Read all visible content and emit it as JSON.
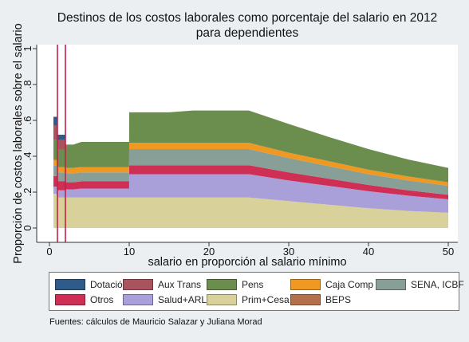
{
  "chart_data": {
    "type": "area",
    "title": "Destinos de los costos laborales como porcentaje del salario en 2012 para dependientes",
    "xlabel": "salario en proporción al salario mínimo",
    "ylabel": "Proporción de costos laborales sobre el salario",
    "xlim": [
      0,
      50
    ],
    "ylim": [
      0,
      1
    ],
    "x_ticks": [
      "0",
      "10",
      "20",
      "30",
      "40",
      "50"
    ],
    "y_ticks": [
      "0",
      ".2",
      ".4",
      ".6",
      ".8",
      "1"
    ],
    "reference_lines_x": [
      1,
      2
    ],
    "grid": false,
    "stacked": true,
    "x": [
      0.5,
      1,
      1.01,
      2,
      2.01,
      3,
      4,
      5,
      6,
      7,
      8,
      9,
      9.99,
      10,
      12,
      15,
      18,
      20,
      22,
      25,
      30,
      35,
      40,
      45,
      50
    ],
    "series": [
      {
        "name": "Prim+Cesa",
        "color": "#d8d19a",
        "values": [
          0.19,
          0.19,
          0.17,
          0.17,
          0.17,
          0.17,
          0.17,
          0.17,
          0.17,
          0.17,
          0.17,
          0.17,
          0.17,
          0.17,
          0.17,
          0.17,
          0.17,
          0.17,
          0.17,
          0.17,
          0.15,
          0.13,
          0.11,
          0.095,
          0.085
        ]
      },
      {
        "name": "Salud+ARL",
        "color": "#a99fd9",
        "values": [
          0.04,
          0.04,
          0.04,
          0.04,
          0.045,
          0.045,
          0.05,
          0.05,
          0.05,
          0.05,
          0.05,
          0.05,
          0.05,
          0.13,
          0.13,
          0.13,
          0.13,
          0.13,
          0.13,
          0.13,
          0.115,
          0.105,
          0.095,
          0.085,
          0.075
        ]
      },
      {
        "name": "Otros",
        "color": "#cf2f55",
        "values": [
          0.06,
          0.06,
          0.05,
          0.05,
          0.04,
          0.04,
          0.04,
          0.04,
          0.04,
          0.04,
          0.04,
          0.04,
          0.04,
          0.05,
          0.05,
          0.05,
          0.05,
          0.05,
          0.05,
          0.05,
          0.045,
          0.04,
          0.035,
          0.03,
          0.025
        ]
      },
      {
        "name": "SENA, ICBF",
        "color": "#879f96",
        "values": [
          0.06,
          0.06,
          0.05,
          0.05,
          0.05,
          0.05,
          0.05,
          0.05,
          0.05,
          0.05,
          0.05,
          0.05,
          0.05,
          0.09,
          0.09,
          0.09,
          0.09,
          0.09,
          0.09,
          0.09,
          0.08,
          0.07,
          0.06,
          0.055,
          0.05
        ]
      },
      {
        "name": "Caja Comp F",
        "color": "#ef9822",
        "values": [
          0.03,
          0.03,
          0.03,
          0.03,
          0.03,
          0.03,
          0.03,
          0.03,
          0.03,
          0.03,
          0.03,
          0.03,
          0.03,
          0.035,
          0.035,
          0.035,
          0.035,
          0.035,
          0.035,
          0.035,
          0.03,
          0.028,
          0.025,
          0.022,
          0.02
        ]
      },
      {
        "name": "Pens",
        "color": "#6b8e4e",
        "values": [
          0.11,
          0.11,
          0.1,
          0.1,
          0.13,
          0.13,
          0.14,
          0.14,
          0.14,
          0.14,
          0.14,
          0.14,
          0.14,
          0.17,
          0.17,
          0.17,
          0.18,
          0.18,
          0.18,
          0.18,
          0.16,
          0.135,
          0.115,
          0.095,
          0.08
        ]
      },
      {
        "name": "Aux Trans",
        "color": "#a9535e",
        "values": [
          0.08,
          0.08,
          0.05,
          0.05,
          0,
          0,
          0,
          0,
          0,
          0,
          0,
          0,
          0,
          0,
          0,
          0,
          0,
          0,
          0,
          0,
          0,
          0,
          0,
          0,
          0
        ]
      },
      {
        "name": "BEPS",
        "color": "#b3704a",
        "values": [
          0,
          0,
          0,
          0,
          0,
          0,
          0,
          0,
          0,
          0,
          0,
          0,
          0,
          0,
          0,
          0,
          0,
          0,
          0,
          0,
          0,
          0,
          0,
          0,
          0
        ]
      },
      {
        "name": "Dotación",
        "color": "#2e5b8a",
        "values": [
          0.05,
          0.05,
          0.03,
          0.03,
          0,
          0,
          0,
          0,
          0,
          0,
          0,
          0,
          0,
          0,
          0,
          0,
          0,
          0,
          0,
          0,
          0,
          0,
          0,
          0,
          0
        ]
      }
    ],
    "legend": [
      {
        "label": "Dotación",
        "color": "#2e5b8a"
      },
      {
        "label": "Aux Trans",
        "color": "#a9535e"
      },
      {
        "label": "Pens",
        "color": "#6b8e4e"
      },
      {
        "label": "Caja Comp F",
        "color": "#ef9822"
      },
      {
        "label": "SENA, ICBF",
        "color": "#879f96"
      },
      {
        "label": "Otros",
        "color": "#cf2f55"
      },
      {
        "label": "Salud+ARL",
        "color": "#a99fd9"
      },
      {
        "label": "Prim+Cesa",
        "color": "#d8d19a"
      },
      {
        "label": "BEPS",
        "color": "#b3704a"
      }
    ],
    "legend_position": "bottom",
    "source_note": "Fuentes: cálculos de Mauricio Salazar y Juliana Morad",
    "reference_line_color": "#c4204a"
  }
}
